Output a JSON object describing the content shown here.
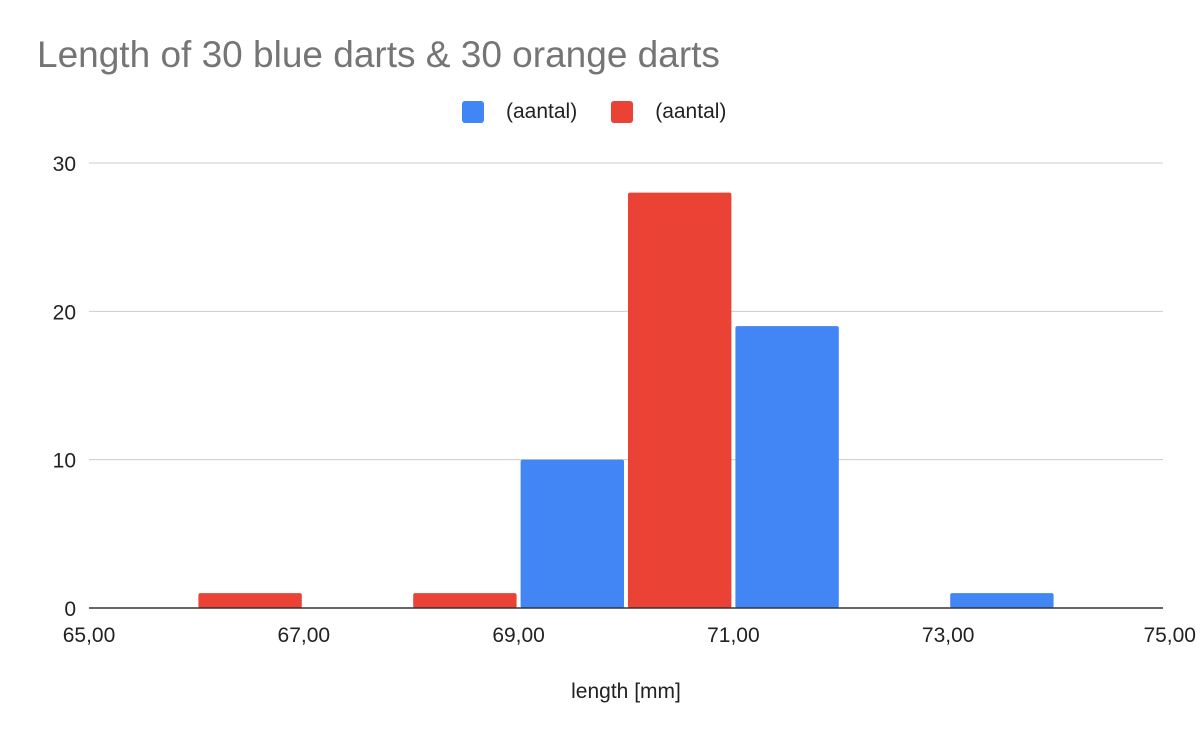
{
  "chart_data": {
    "type": "bar",
    "title": "Length of 30 blue darts & 30 orange darts",
    "xlabel": "length [mm]",
    "ylabel": "",
    "xlim": [
      65,
      75
    ],
    "ylim": [
      0,
      30
    ],
    "x_ticks": [
      "65,00",
      "67,00",
      "69,00",
      "71,00",
      "73,00",
      "75,00"
    ],
    "y_ticks": [
      "0",
      "10",
      "20",
      "30"
    ],
    "grid": true,
    "legend_position": "top",
    "series": [
      {
        "name": "(aantal)",
        "color": "#4285f4",
        "bins": [
          {
            "from": 69,
            "to": 70,
            "value": 10
          },
          {
            "from": 71,
            "to": 72,
            "value": 19
          },
          {
            "from": 73,
            "to": 74,
            "value": 1
          }
        ]
      },
      {
        "name": "(aantal)",
        "color": "#ea4335",
        "bins": [
          {
            "from": 66,
            "to": 67,
            "value": 1
          },
          {
            "from": 68,
            "to": 69,
            "value": 1
          },
          {
            "from": 70,
            "to": 71,
            "value": 28
          }
        ]
      }
    ]
  }
}
